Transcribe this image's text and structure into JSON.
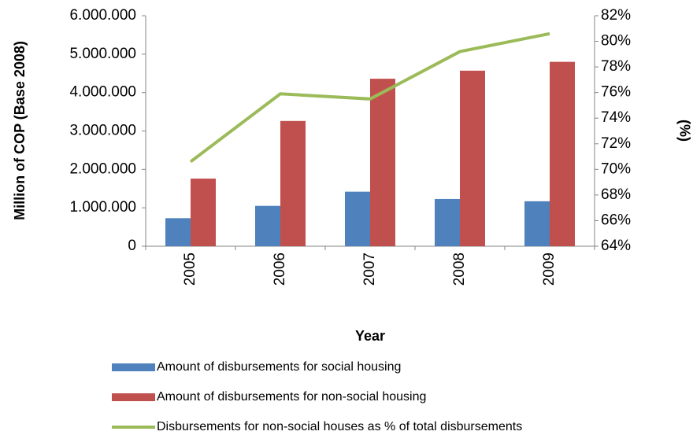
{
  "chart_data": {
    "type": "bar",
    "x_label": "Year",
    "y_label": "Million of COP (Base 2008)",
    "y2_label": "(%)",
    "categories": [
      "2005",
      "2006",
      "2007",
      "2008",
      "2009"
    ],
    "series": [
      {
        "name": "Amount of disbursements for social housing",
        "color": "#4f81bd",
        "values": [
          730000,
          1050000,
          1420000,
          1230000,
          1170000
        ]
      },
      {
        "name": "Amount of disbursements for non-social housing",
        "color": "#c0504d",
        "values": [
          1760000,
          3260000,
          4360000,
          4570000,
          4800000
        ]
      },
      {
        "name": "Disbursements for non-social houses as % of total disbursements",
        "color": "#9bbb59",
        "type": "line",
        "axis": "y2",
        "values": [
          70.6,
          75.9,
          75.5,
          79.2,
          80.6
        ]
      }
    ],
    "ylim": [
      0,
      6000000
    ],
    "yticks": [
      0,
      {
        "value": 1000000,
        "label": "1.000.000"
      },
      {
        "value": 2000000,
        "label": "2.000.000"
      },
      {
        "value": 3000000,
        "label": "3.000.000"
      },
      {
        "value": 4000000,
        "label": "4.000.000"
      },
      {
        "value": 5000000,
        "label": "5.000.000"
      },
      {
        "value": 6000000,
        "label": "6.000.000"
      }
    ],
    "y2lim": [
      64,
      82
    ],
    "y2ticks": [
      {
        "value": 64,
        "label": "64%"
      },
      {
        "value": 66,
        "label": "66%"
      },
      {
        "value": 68,
        "label": "68%"
      },
      {
        "value": 70,
        "label": "70%"
      },
      {
        "value": 72,
        "label": "72%"
      },
      {
        "value": 74,
        "label": "74%"
      },
      {
        "value": 76,
        "label": "76%"
      },
      {
        "value": 78,
        "label": "78%"
      },
      {
        "value": 80,
        "label": "80%"
      },
      {
        "value": 82,
        "label": "82%"
      }
    ],
    "legend_position": "bottom"
  }
}
